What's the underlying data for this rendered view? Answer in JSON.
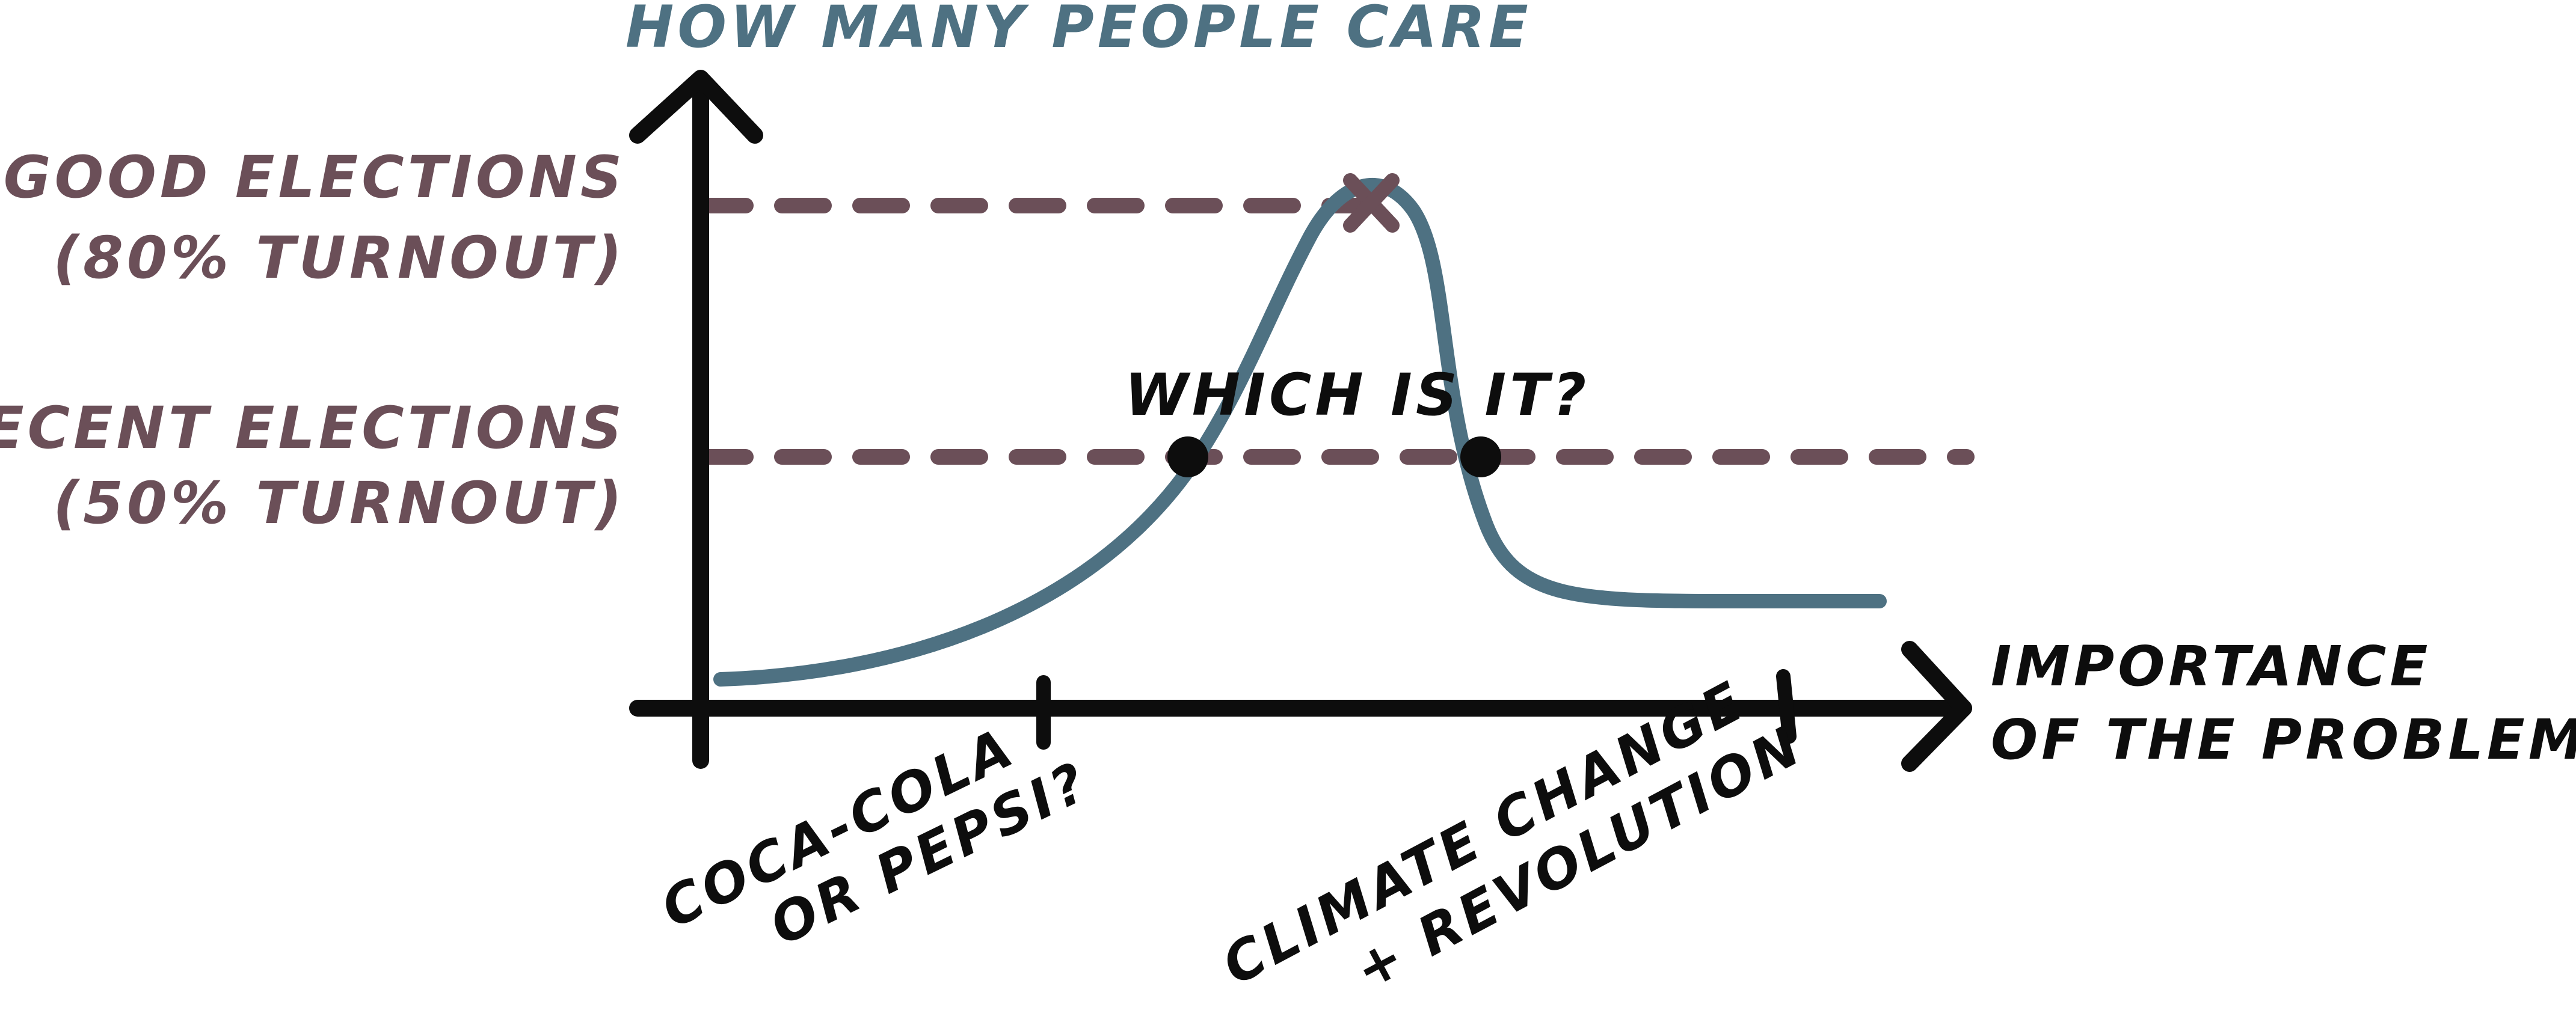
{
  "y_axis": {
    "title": "HOW MANY PEOPLE CARE"
  },
  "x_axis": {
    "title_line1": "IMPORTANCE",
    "title_line2": "OF THE PROBLEM"
  },
  "levels": {
    "good": {
      "line1": "GOOD ELECTIONS",
      "line2": "(80% TURNOUT)"
    },
    "recent": {
      "line1": "RECENT ELECTIONS",
      "line2": "(50% TURNOUT)"
    }
  },
  "question": "WHICH IS IT?",
  "ticks": {
    "low": {
      "line1": "COCA-COLA",
      "line2": "OR PEPSI?"
    },
    "high": {
      "line1": "CLIMATE CHANGE",
      "line2": "+ REVOLUTION"
    }
  },
  "colors": {
    "axis": "#0d0d0d",
    "curve": "#4e7182",
    "level_lines": "#6b4f58",
    "markers": "#0d0d0d"
  }
}
